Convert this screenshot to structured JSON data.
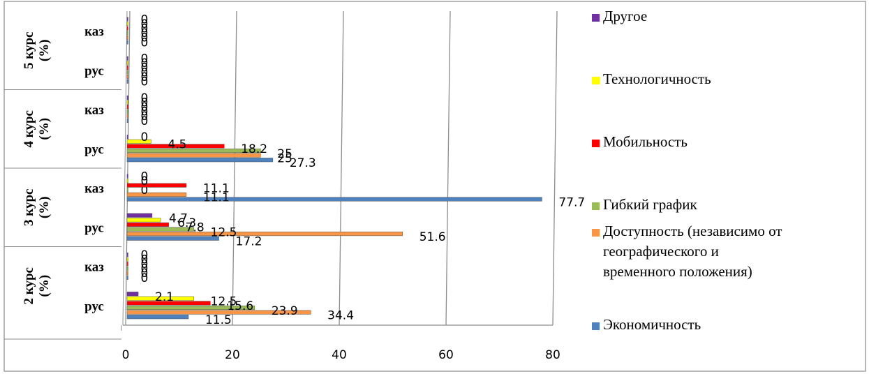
{
  "chart_data": {
    "type": "bar",
    "orientation": "horizontal",
    "groups": [
      {
        "label": "2 курс\n(%)",
        "categories": [
          "рус",
          "каз"
        ]
      },
      {
        "label": "3 курс\n(%)",
        "categories": [
          "рус",
          "каз"
        ]
      },
      {
        "label": "4 курс\n(%)",
        "categories": [
          "рус",
          "каз"
        ]
      },
      {
        "label": "5 курс\n(%)",
        "categories": [
          "рус",
          "каз"
        ]
      }
    ],
    "categories": [
      "2 курс рус",
      "2 курс каз",
      "3 курс рус",
      "3 курс каз",
      "4 курс рус",
      "4 курс каз",
      "5 курс рус",
      "5 курс каз"
    ],
    "series": [
      {
        "name": "Экономичность",
        "color": "#4F81BD",
        "values": [
          11.5,
          0,
          17.2,
          77.7,
          27.3,
          0,
          0,
          0
        ]
      },
      {
        "name": "Доступность (независимо от географического и временного положения)",
        "color": "#F79646",
        "values": [
          34.4,
          0,
          51.6,
          11.1,
          25,
          0,
          0,
          0
        ]
      },
      {
        "name": "Гибкий график",
        "color": "#9BBB59",
        "values": [
          23.9,
          0,
          12.5,
          0,
          25,
          0,
          0,
          0
        ]
      },
      {
        "name": "Мобильность",
        "color": "#FF0000",
        "values": [
          15.6,
          0,
          7.8,
          11.1,
          18.2,
          0,
          0,
          0
        ]
      },
      {
        "name": "Технологичность",
        "color": "#FFFF00",
        "values": [
          12.5,
          0,
          6.3,
          0,
          4.5,
          0,
          0,
          0
        ]
      },
      {
        "name": "Другое",
        "color": "#7030A0",
        "values": [
          2.1,
          0,
          4.7,
          0,
          0,
          0,
          0,
          0
        ]
      }
    ],
    "x_ticks": [
      "0",
      "20",
      "40",
      "60",
      "80"
    ],
    "xlim": [
      0,
      80
    ],
    "grid": "vertical",
    "legend": "right",
    "title": "",
    "xlabel": "",
    "ylabel": ""
  }
}
